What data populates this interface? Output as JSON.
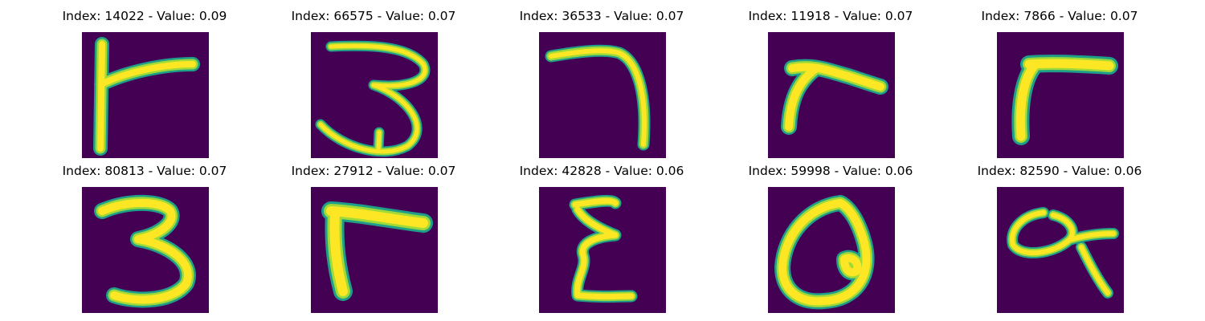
{
  "colors": {
    "background": "#440154",
    "stroke_core": "#fde725",
    "stroke_mid": "#a0da39",
    "stroke_edge": "#1f9e89"
  },
  "tiles": [
    {
      "title": "Index: 14022 - Value: 0.09",
      "glyph": "seven-like"
    },
    {
      "title": "Index: 66575 - Value: 0.07",
      "glyph": "three"
    },
    {
      "title": "Index: 36533 - Value: 0.07",
      "glyph": "seven-curve"
    },
    {
      "title": "Index: 11918 - Value: 0.07",
      "glyph": "seven-like"
    },
    {
      "title": "Index: 7866 - Value: 0.07",
      "glyph": "seven-like"
    },
    {
      "title": "Index: 80813 - Value: 0.07",
      "glyph": "three"
    },
    {
      "title": "Index: 27912 - Value: 0.07",
      "glyph": "seven-like"
    },
    {
      "title": "Index: 42828 - Value: 0.06",
      "glyph": "epsilon"
    },
    {
      "title": "Index: 59998 - Value: 0.06",
      "glyph": "q-loop"
    },
    {
      "title": "Index: 82590 - Value: 0.06",
      "glyph": "alpha-loop"
    }
  ]
}
